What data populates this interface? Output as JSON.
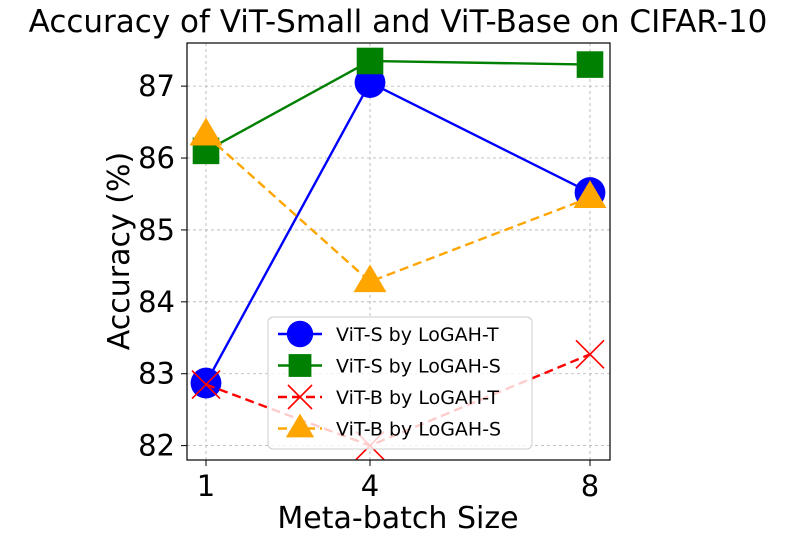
{
  "chart_data": {
    "type": "line",
    "title": "Accuracy of ViT-Small and ViT-Base on CIFAR-10",
    "xlabel": "Meta-batch Size",
    "ylabel": "Accuracy (%)",
    "categories": [
      "1",
      "4",
      "8"
    ],
    "ylim": [
      81.8,
      87.6
    ],
    "yticks": [
      "82",
      "83",
      "84",
      "85",
      "86",
      "87"
    ],
    "grid": true,
    "legend_position": "lower-center",
    "series": [
      {
        "name": "ViT-S by LoGAH-T",
        "values": [
          82.87,
          87.05,
          85.52
        ],
        "color": "#0000ff",
        "marker": "circle",
        "line": "solid"
      },
      {
        "name": "ViT-S by LoGAH-S",
        "values": [
          86.1,
          87.35,
          87.3
        ],
        "color": "#008000",
        "marker": "square",
        "line": "solid"
      },
      {
        "name": "ViT-B by LoGAH-T",
        "values": [
          82.85,
          82.0,
          83.27
        ],
        "color": "#ff0000",
        "marker": "x",
        "line": "dashed"
      },
      {
        "name": "ViT-B by LoGAH-S",
        "values": [
          86.32,
          84.28,
          85.45
        ],
        "color": "#ffa500",
        "marker": "triangle",
        "line": "dashed"
      }
    ]
  }
}
